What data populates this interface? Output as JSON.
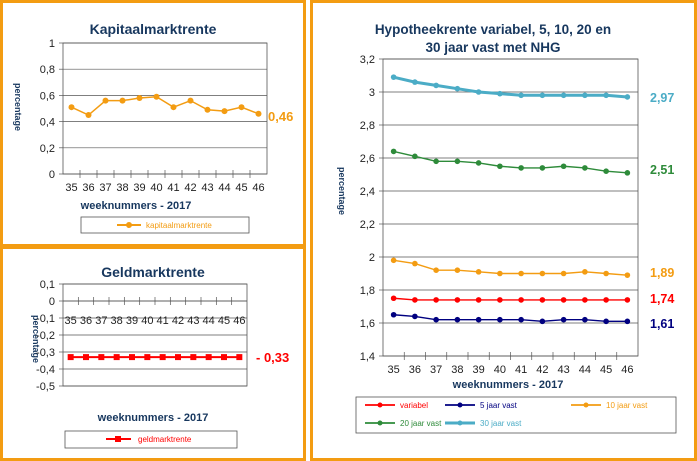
{
  "colors": {
    "frame": "#f39c12",
    "title": "#17375e"
  },
  "charts": {
    "kapitaal": {
      "title": "Kapitaalmarktrente",
      "ylabel": "percentage",
      "xlabel": "weeknummers - 2017",
      "legend": "kapitaalmarktrente",
      "end_label": "0,46"
    },
    "geld": {
      "title": "Geldmarktrente",
      "ylabel": "percentage",
      "xlabel": "weeknummers - 2017",
      "legend": "geldmarktrente",
      "end_label": "- 0,33"
    },
    "hypo": {
      "title_line1": "Hypotheekrente variabel, 5, 10, 20 en",
      "title_line2": "30 jaar vast met NHG",
      "ylabel": "percentage",
      "xlabel": "weeknummers - 2017",
      "end_labels": [
        "1,74",
        "1,61",
        "1,89",
        "2,51",
        "2,97"
      ]
    }
  },
  "chart_data": [
    {
      "type": "line",
      "title": "Kapitaalmarktrente",
      "xlabel": "weeknummers - 2017",
      "ylabel": "percentage",
      "x": [
        35,
        36,
        37,
        38,
        39,
        40,
        41,
        42,
        43,
        44,
        45,
        46
      ],
      "ylim": [
        0,
        1
      ],
      "yticks": [
        "0",
        "0,2",
        "0,4",
        "0,6",
        "0,8",
        "1"
      ],
      "grid": true,
      "legend": "bottom",
      "series": [
        {
          "name": "kapitaalmarktrente",
          "color": "#f39c12",
          "values": [
            0.51,
            0.45,
            0.56,
            0.56,
            0.58,
            0.59,
            0.51,
            0.56,
            0.49,
            0.48,
            0.51,
            0.46
          ]
        }
      ]
    },
    {
      "type": "line",
      "title": "Geldmarktrente",
      "xlabel": "weeknummers - 2017",
      "ylabel": "percentage",
      "x": [
        35,
        36,
        37,
        38,
        39,
        40,
        41,
        42,
        43,
        44,
        45,
        46
      ],
      "ylim": [
        -0.5,
        0.1
      ],
      "yticks": [
        "-0,5",
        "-0,4",
        "-0,3",
        "-0,2",
        "-0,1",
        "0",
        "0,1"
      ],
      "grid": true,
      "legend": "bottom",
      "series": [
        {
          "name": "geldmarktrente",
          "color": "#ff0000",
          "values": [
            -0.33,
            -0.33,
            -0.33,
            -0.33,
            -0.33,
            -0.33,
            -0.33,
            -0.33,
            -0.33,
            -0.33,
            -0.33,
            -0.33
          ]
        }
      ]
    },
    {
      "type": "line",
      "title": "Hypotheekrente variabel, 5, 10, 20 en 30 jaar vast met NHG",
      "xlabel": "weeknummers - 2017",
      "ylabel": "percentage",
      "x": [
        35,
        36,
        37,
        38,
        39,
        40,
        41,
        42,
        43,
        44,
        45,
        46
      ],
      "ylim": [
        1.4,
        3.2
      ],
      "yticks": [
        "1,4",
        "1,6",
        "1,8",
        "2",
        "2,2",
        "2,4",
        "2,6",
        "2,8",
        "3",
        "3,2"
      ],
      "grid": true,
      "legend": "bottom",
      "series": [
        {
          "name": "variabel",
          "color": "#ff0000",
          "values": [
            1.75,
            1.74,
            1.74,
            1.74,
            1.74,
            1.74,
            1.74,
            1.74,
            1.74,
            1.74,
            1.74,
            1.74
          ]
        },
        {
          "name": "5 jaar vast",
          "color": "#000080",
          "values": [
            1.65,
            1.64,
            1.62,
            1.62,
            1.62,
            1.62,
            1.62,
            1.61,
            1.62,
            1.62,
            1.61,
            1.61
          ]
        },
        {
          "name": "10 jaar vast",
          "color": "#f39c12",
          "values": [
            1.98,
            1.96,
            1.92,
            1.92,
            1.91,
            1.9,
            1.9,
            1.9,
            1.9,
            1.91,
            1.9,
            1.89
          ]
        },
        {
          "name": "20 jaar vast",
          "color": "#2e8b3a",
          "values": [
            2.64,
            2.61,
            2.58,
            2.58,
            2.57,
            2.55,
            2.54,
            2.54,
            2.55,
            2.54,
            2.52,
            2.51
          ]
        },
        {
          "name": "30 jaar vast",
          "color": "#4bacc6",
          "values": [
            3.09,
            3.06,
            3.04,
            3.02,
            3.0,
            2.99,
            2.98,
            2.98,
            2.98,
            2.98,
            2.98,
            2.97
          ]
        }
      ]
    }
  ]
}
